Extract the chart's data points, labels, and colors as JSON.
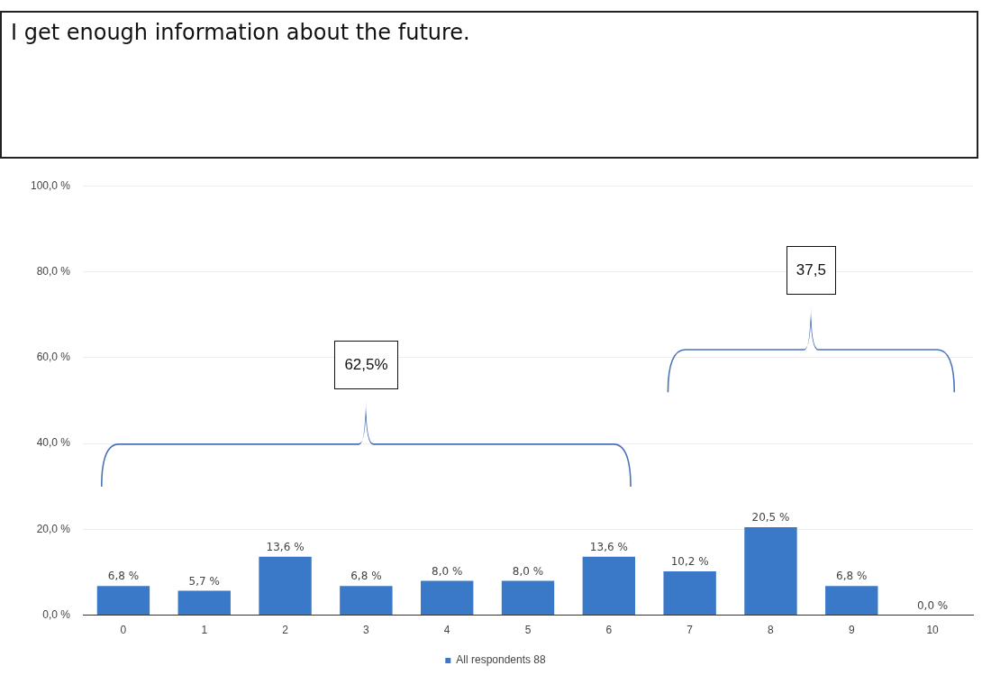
{
  "chart_data": {
    "type": "bar",
    "title": "I get enough information about the future.",
    "categories": [
      "0",
      "1",
      "2",
      "3",
      "4",
      "5",
      "6",
      "7",
      "8",
      "9",
      "10"
    ],
    "series": [
      {
        "name": "All respondents 88",
        "color": "#3a78c8",
        "values": [
          6.8,
          5.7,
          13.6,
          6.8,
          8.0,
          8.0,
          13.6,
          10.2,
          20.5,
          6.8,
          0.0
        ],
        "value_labels": [
          "6,8 %",
          "5,7 %",
          "13,6 %",
          "6,8 %",
          "8,0 %",
          "8,0 %",
          "13,6 %",
          "10,2 %",
          "20,5 %",
          "6,8 %",
          "0,0 %"
        ]
      }
    ],
    "ylim": [
      0,
      100
    ],
    "yticks": [
      {
        "value": 0,
        "label": "0,0 %"
      },
      {
        "value": 20,
        "label": "20,0 %"
      },
      {
        "value": 40,
        "label": "40,0 %"
      },
      {
        "value": 60,
        "label": "60,0 %"
      },
      {
        "value": 80,
        "label": "80,0 %"
      },
      {
        "value": 100,
        "label": "100,0 %"
      }
    ],
    "grid": "y",
    "legend": "bottom",
    "annotations": [
      "62,5%",
      "37,5"
    ]
  }
}
